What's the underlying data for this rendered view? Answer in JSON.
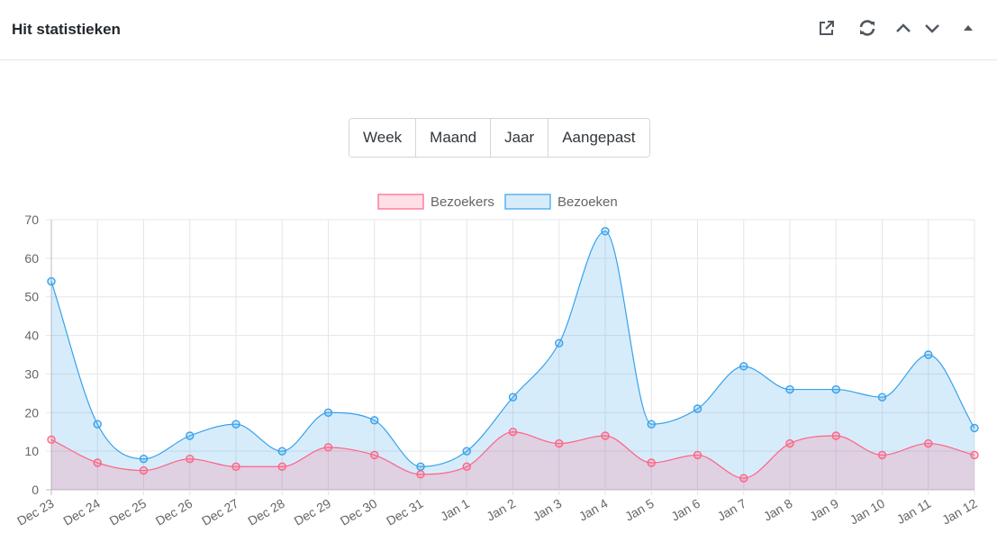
{
  "header": {
    "title": "Hit statistieken",
    "icons": [
      "external-link-icon",
      "refresh-icon",
      "chevron-up-icon",
      "chevron-down-icon",
      "collapse-triangle-icon"
    ]
  },
  "range_buttons": [
    "Week",
    "Maand",
    "Jaar",
    "Aangepast"
  ],
  "colors": {
    "bezoekers_line": "#ff6384",
    "bezoekers_fill": "rgba(255,99,132,0.2)",
    "bezoeken_line": "#36a2eb",
    "bezoeken_fill": "rgba(54,162,235,0.2)"
  },
  "chart_data": {
    "type": "area",
    "categories": [
      "Dec 23",
      "Dec 24",
      "Dec 25",
      "Dec 26",
      "Dec 27",
      "Dec 28",
      "Dec 29",
      "Dec 30",
      "Dec 31",
      "Jan 1",
      "Jan 2",
      "Jan 3",
      "Jan 4",
      "Jan 5",
      "Jan 6",
      "Jan 7",
      "Jan 8",
      "Jan 9",
      "Jan 10",
      "Jan 11",
      "Jan 12"
    ],
    "series": [
      {
        "name": "Bezoekers",
        "values": [
          13,
          7,
          5,
          8,
          6,
          6,
          11,
          9,
          4,
          6,
          15,
          12,
          14,
          7,
          9,
          3,
          12,
          14,
          9,
          12,
          9
        ]
      },
      {
        "name": "Bezoeken",
        "values": [
          54,
          17,
          8,
          14,
          17,
          10,
          20,
          18,
          6,
          10,
          24,
          38,
          67,
          17,
          21,
          32,
          26,
          26,
          24,
          35,
          16
        ]
      }
    ],
    "ylim": [
      0,
      70
    ],
    "yticks": [
      0,
      10,
      20,
      30,
      40,
      50,
      60,
      70
    ],
    "grid": true,
    "legend": "top"
  }
}
